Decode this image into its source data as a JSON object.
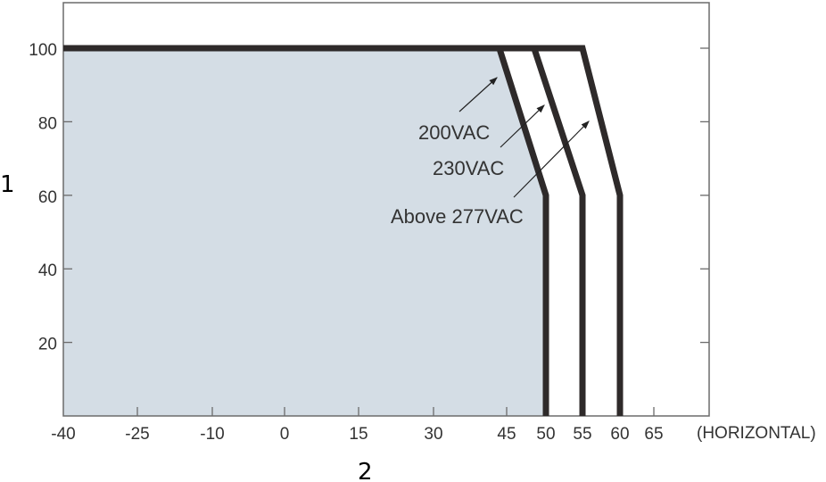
{
  "chart_data": {
    "type": "area",
    "title": "",
    "xlabel": "2",
    "ylabel": "1",
    "x_unit_label": "(HORIZONTAL)",
    "x_ticks": [
      -40,
      -25,
      -10,
      0,
      15,
      30,
      45,
      50,
      55,
      60,
      65
    ],
    "y_ticks": [
      20,
      40,
      60,
      80,
      100
    ],
    "xlim": [
      -40,
      72
    ],
    "ylim": [
      0,
      110
    ],
    "grid": false,
    "shaded_region": {
      "series": "200VAC",
      "color": "#d4dde5"
    },
    "series": [
      {
        "name": "200VAC",
        "points": [
          [
            -40,
            100
          ],
          [
            43.5,
            100
          ],
          [
            50,
            60
          ],
          [
            50,
            0
          ]
        ]
      },
      {
        "name": "230VAC",
        "points": [
          [
            -40,
            100
          ],
          [
            48.5,
            100
          ],
          [
            55,
            60
          ],
          [
            55,
            0
          ]
        ]
      },
      {
        "name": "Above 277VAC",
        "points": [
          [
            -40,
            100
          ],
          [
            55,
            100
          ],
          [
            60,
            60
          ],
          [
            60,
            0
          ]
        ]
      }
    ],
    "annotations": [
      {
        "text": "200VAC",
        "points_to": "200VAC"
      },
      {
        "text": "230VAC",
        "points_to": "230VAC"
      },
      {
        "text": "Above 277VAC",
        "points_to": "Above 277VAC"
      }
    ]
  },
  "colors": {
    "fill": "#d4dde5",
    "line": "#2e2a2a",
    "frame": "#6b6b6b",
    "text": "#333333"
  }
}
